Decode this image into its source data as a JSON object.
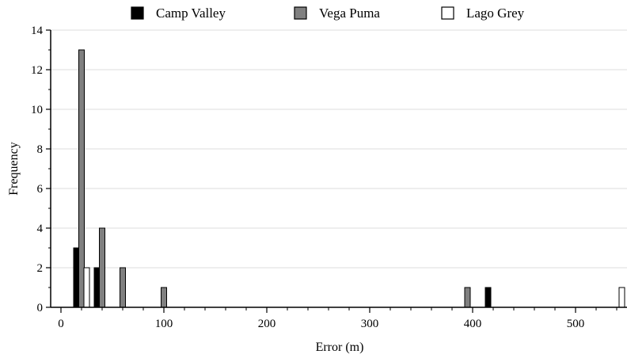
{
  "chart_data": {
    "type": "bar",
    "xlabel": "Error (m)",
    "ylabel": "Frequency",
    "xlim": [
      -10,
      550
    ],
    "ylim": [
      0,
      14
    ],
    "x_ticks": [
      0,
      100,
      200,
      300,
      400,
      500
    ],
    "y_ticks": [
      0,
      2,
      4,
      6,
      8,
      10,
      12,
      14
    ],
    "grid": "horizontal",
    "legend_position": "top",
    "series": [
      {
        "name": "Camp Valley",
        "color": "#000000",
        "x": [
          15,
          35,
          415
        ],
        "values": [
          3,
          2,
          1
        ]
      },
      {
        "name": "Vega Puma",
        "color": "#808080",
        "x": [
          20,
          40,
          60,
          100,
          395
        ],
        "values": [
          13,
          4,
          2,
          1,
          1
        ]
      },
      {
        "name": "Lago Grey",
        "color": "#ffffff",
        "x": [
          25,
          545
        ],
        "values": [
          2,
          1
        ]
      }
    ]
  }
}
